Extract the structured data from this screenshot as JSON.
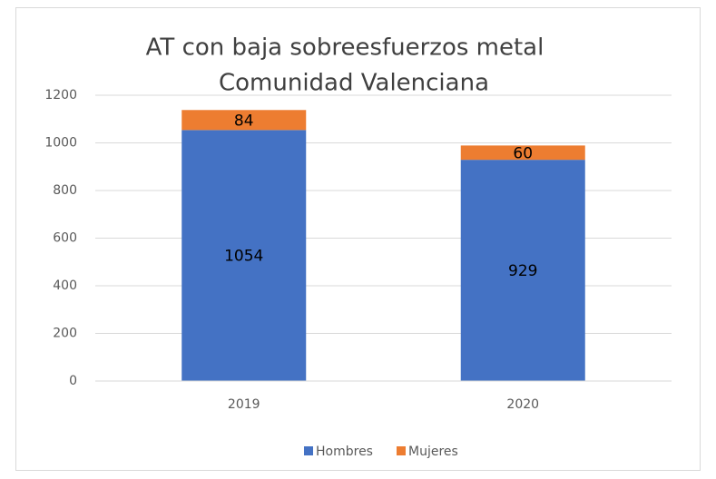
{
  "chart_data": {
    "type": "stacked_bar",
    "title": [
      "AT con baja sobreesfuerzos metal",
      "Comunidad Valenciana"
    ],
    "categories": [
      "2019",
      "2020"
    ],
    "series": [
      {
        "name": "Hombres",
        "color": "#4472c4",
        "values": [
          1054,
          929
        ]
      },
      {
        "name": "Mujeres",
        "color": "#ed7d31",
        "values": [
          84,
          60
        ]
      }
    ],
    "ylim": [
      0,
      1200
    ],
    "yticks": [
      0,
      200,
      400,
      600,
      800,
      1000,
      1200
    ],
    "grid": true,
    "legend": "bottom"
  }
}
